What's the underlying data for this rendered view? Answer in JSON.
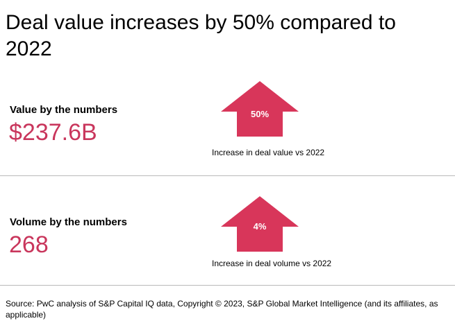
{
  "title": "Deal value increases by 50% compared to 2022",
  "value_block": {
    "label": "Value by the numbers",
    "amount": "$237.6B",
    "change": "50%",
    "caption": "Increase in deal value vs 2022"
  },
  "volume_block": {
    "label": "Volume by the numbers",
    "amount": "268",
    "change": "4%",
    "caption": "Increase in deal volume vs 2022"
  },
  "source": "Source: PwC analysis of S&P Capital IQ data, Copyright © 2023, S&P Global Market Intelligence (and its affiliates, as applicable)",
  "colors": {
    "accent": "#c9365c",
    "arrow_fill": "#d8365a",
    "divider": "#b9b9b9"
  },
  "icons": [
    "up-arrow-icon"
  ]
}
